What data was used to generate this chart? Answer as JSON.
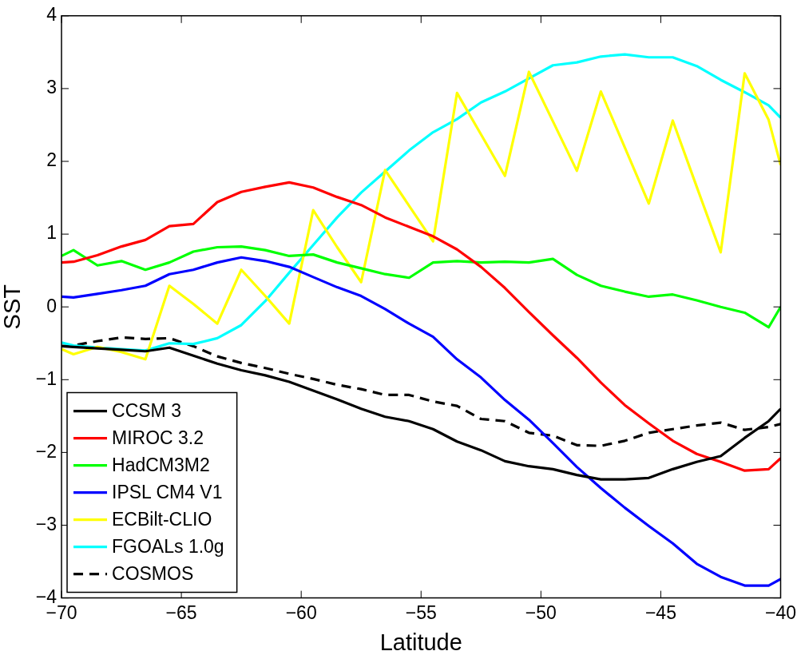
{
  "chart_data": {
    "type": "line",
    "xlabel": "Latitude",
    "ylabel": "SST",
    "x": [
      -70,
      -69.5,
      -68.5,
      -67.5,
      -66.5,
      -65.5,
      -64.5,
      -63.5,
      -62.5,
      -61.5,
      -60.5,
      -59.5,
      -58.5,
      -57.5,
      -56.5,
      -55.5,
      -54.5,
      -53.5,
      -52.5,
      -51.5,
      -50.5,
      -49.5,
      -48.5,
      -47.5,
      -46.5,
      -45.5,
      -44.5,
      -43.5,
      -42.5,
      -41.5,
      -40.5,
      -40
    ],
    "series": [
      {
        "name": "CCSM 3",
        "color": "#000000",
        "values": [
          -0.54,
          -0.55,
          -0.57,
          -0.59,
          -0.61,
          -0.56,
          -0.67,
          -0.78,
          -0.87,
          -0.94,
          -1.03,
          -1.15,
          -1.27,
          -1.4,
          -1.51,
          -1.57,
          -1.68,
          -1.85,
          -1.97,
          -2.12,
          -2.19,
          -2.23,
          -2.31,
          -2.37,
          -2.37,
          -2.35,
          -2.23,
          -2.13,
          -2.05,
          -1.8,
          -1.57,
          -1.4
        ]
      },
      {
        "name": "MIROC 3.2",
        "color": "#ff0000",
        "values": [
          0.61,
          0.62,
          0.71,
          0.83,
          0.92,
          1.11,
          1.14,
          1.44,
          1.58,
          1.65,
          1.71,
          1.64,
          1.51,
          1.4,
          1.23,
          1.1,
          0.97,
          0.79,
          0.55,
          0.26,
          -0.07,
          -0.39,
          -0.7,
          -1.04,
          -1.35,
          -1.6,
          -1.84,
          -2.02,
          -2.13,
          -2.25,
          -2.23,
          -2.08
        ]
      },
      {
        "name": "HadCM3M2",
        "color": "#00ff00",
        "values": [
          0.7,
          0.78,
          0.57,
          0.63,
          0.51,
          0.61,
          0.76,
          0.82,
          0.83,
          0.78,
          0.7,
          0.72,
          0.61,
          0.53,
          0.45,
          0.4,
          0.61,
          0.63,
          0.61,
          0.62,
          0.61,
          0.66,
          0.44,
          0.29,
          0.21,
          0.14,
          0.17,
          0.09,
          0.0,
          -0.08,
          -0.28,
          0.0
        ]
      },
      {
        "name": "IPSL CM4 V1",
        "color": "#0000ff",
        "values": [
          0.14,
          0.13,
          0.18,
          0.23,
          0.29,
          0.45,
          0.51,
          0.61,
          0.68,
          0.63,
          0.55,
          0.41,
          0.27,
          0.15,
          -0.03,
          -0.23,
          -0.41,
          -0.72,
          -0.97,
          -1.28,
          -1.55,
          -1.87,
          -2.2,
          -2.49,
          -2.76,
          -3.01,
          -3.25,
          -3.53,
          -3.71,
          -3.83,
          -3.83,
          -3.74
        ]
      },
      {
        "name": "ECBilt-CLIO",
        "color": "#ffff00",
        "values": [
          -0.58,
          -0.65,
          -0.55,
          -0.62,
          -0.72,
          0.29,
          0.04,
          -0.23,
          0.51,
          0.15,
          -0.23,
          1.33,
          0.82,
          0.34,
          1.88,
          1.39,
          0.9,
          2.94,
          2.37,
          1.8,
          3.23,
          2.55,
          1.87,
          2.96,
          2.19,
          1.42,
          2.56,
          1.65,
          0.75,
          3.21,
          2.57,
          1.95
        ]
      },
      {
        "name": "FGOALs 1.0g",
        "color": "#00ffff",
        "values": [
          -0.49,
          -0.53,
          -0.56,
          -0.58,
          -0.6,
          -0.5,
          -0.51,
          -0.43,
          -0.25,
          0.08,
          0.47,
          0.85,
          1.23,
          1.57,
          1.86,
          2.15,
          2.4,
          2.58,
          2.81,
          2.96,
          3.14,
          3.32,
          3.36,
          3.44,
          3.47,
          3.43,
          3.43,
          3.31,
          3.12,
          2.95,
          2.77,
          2.6
        ]
      },
      {
        "name": "COSMOS",
        "color": "#000000",
        "line_style": "dashed",
        "values": [
          -0.54,
          -0.53,
          -0.47,
          -0.42,
          -0.44,
          -0.43,
          -0.54,
          -0.68,
          -0.77,
          -0.84,
          -0.92,
          -0.99,
          -1.07,
          -1.13,
          -1.21,
          -1.21,
          -1.3,
          -1.36,
          -1.54,
          -1.57,
          -1.73,
          -1.77,
          -1.9,
          -1.91,
          -1.84,
          -1.73,
          -1.68,
          -1.63,
          -1.59,
          -1.69,
          -1.65,
          -1.61
        ]
      }
    ],
    "xlim": [
      -70,
      -40
    ],
    "xticks": [
      -70,
      -65,
      -60,
      -55,
      -50,
      -45,
      -40
    ],
    "ylim": [
      -4,
      4
    ],
    "yticks": [
      -4,
      -3,
      -2,
      -1,
      0,
      1,
      2,
      3,
      4
    ],
    "grid": false,
    "legend": "bottom left",
    "marker": "none",
    "line_style": "solid"
  }
}
